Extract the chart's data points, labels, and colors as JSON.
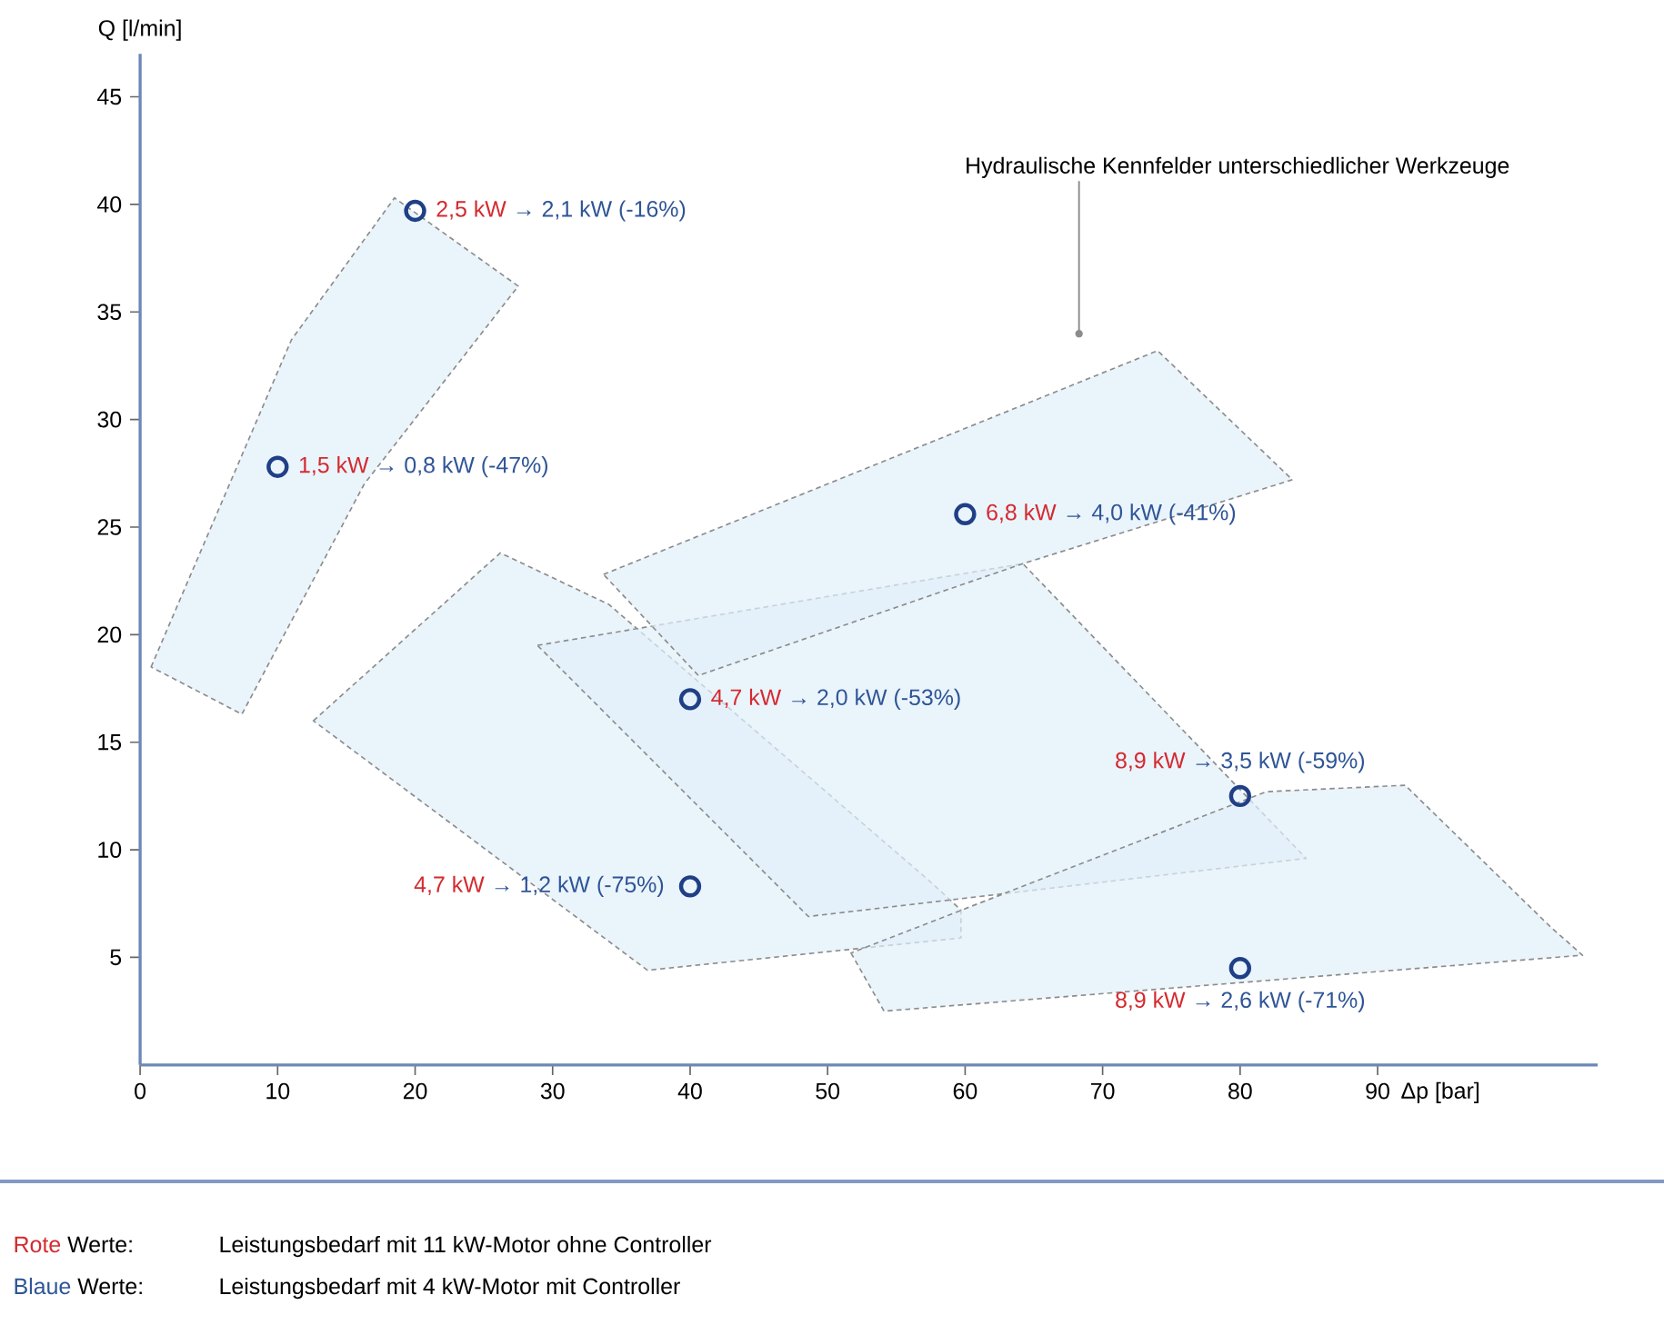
{
  "chart_data": {
    "type": "scatter",
    "xlabel": "Δp [bar]",
    "ylabel": "Q [l/min]",
    "xlim": [
      0,
      106
    ],
    "ylim": [
      0,
      47
    ],
    "xticks": [
      0,
      10,
      20,
      30,
      40,
      50,
      60,
      70,
      80,
      90
    ],
    "yticks": [
      5,
      10,
      15,
      20,
      25,
      30,
      35,
      40,
      45
    ],
    "line_style": "dashed",
    "series": [
      {
        "type": "area",
        "color": "#e1f0fa",
        "x": [
          0.8,
          11.0,
          18.5,
          27.5,
          16.3,
          7.4
        ],
        "values": [
          18.5,
          33.7,
          40.3,
          36.2,
          27.0,
          16.3
        ]
      },
      {
        "type": "area",
        "color": "#e1f0fa",
        "x": [
          12.6,
          26.2,
          34.1,
          57.5,
          59.7,
          59.7,
          36.9
        ],
        "values": [
          16.0,
          23.8,
          21.4,
          8.5,
          7.2,
          5.9,
          4.4
        ]
      },
      {
        "type": "area",
        "color": "#e1f0fa",
        "x": [
          28.9,
          64.2,
          84.8,
          48.6
        ],
        "values": [
          19.5,
          23.3,
          9.6,
          6.9
        ]
      },
      {
        "type": "area",
        "color": "#e1f0fa",
        "x": [
          33.7,
          74.0,
          83.8,
          64.2,
          40.6
        ],
        "values": [
          22.8,
          33.2,
          27.2,
          23.3,
          18.1
        ]
      },
      {
        "type": "area",
        "color": "#e1f0fa",
        "x": [
          51.7,
          54.1,
          104.9,
          102.6,
          92.0,
          81.9
        ],
        "values": [
          5.2,
          2.5,
          5.1,
          6.4,
          13.0,
          12.7
        ]
      },
      {
        "marker": "circle",
        "color": "#1f3f86",
        "x": [
          20,
          10,
          60,
          40,
          40,
          80,
          80
        ],
        "values": [
          39.7,
          27.8,
          25.6,
          17.0,
          8.3,
          12.5,
          4.5
        ]
      }
    ],
    "annotations": [
      {
        "text": "2,5 kW",
        "x": 20,
        "y": 39.7
      },
      "→ 2,1 kW (-16%)",
      {
        "text": "1,5 kW",
        "x": 10,
        "y": 27.8
      },
      "→ 0,8 kW (-47%)",
      {
        "text": "6,8 kW",
        "x": 60,
        "y": 25.6
      },
      "→ 4,0 kW (-41%)",
      {
        "text": "4,7 kW",
        "x": 40,
        "y": 17.0
      },
      "→ 2,0 kW (-53%)",
      "4,7 kW",
      {
        "text": "→ 1,2 kW (-75%)",
        "x": 40,
        "y": 8.3
      },
      {
        "text": "8,9 kW",
        "x": 80,
        "y": 12.5
      },
      "→ 3,5 kW (-59%)",
      {
        "text": "8,9 kW",
        "x": 80,
        "y": 4.5
      },
      "→ 2,6 kW (-71%)",
      "Rote",
      "Werte:",
      "Leistungsbedarf mit 11 kW-Motor ohne Controller",
      "Blaue",
      "Werte:",
      "Leistungsbedarf mit 4 kW-Motor mit Controller",
      "Hydraulische Kennfelder unterschiedlicher Werkzeuge"
    ]
  }
}
